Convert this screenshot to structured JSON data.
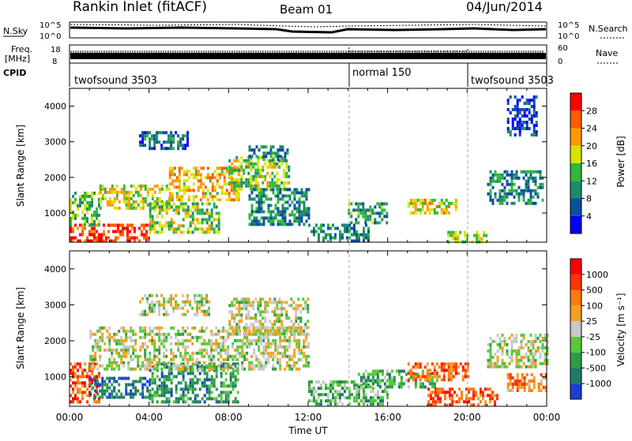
{
  "header": {
    "title": "Rankin Inlet (fitACF)",
    "beam": "Beam 01",
    "date": "04/Jun/2014"
  },
  "noise_panel": {
    "left_label": "N.Sky",
    "right_label": "N.Search",
    "left_ticks": [
      "10^5",
      "10^0"
    ],
    "right_ticks": [
      "10^5",
      "10^0"
    ]
  },
  "freq_panel": {
    "left_label_1": "Freq.",
    "left_label_2": "[MHz]",
    "right_label": "Nave",
    "left_ticks": [
      "18",
      "8"
    ],
    "right_ticks": [
      "60",
      "0"
    ]
  },
  "cpid_panel": {
    "label": "CPID",
    "segments": [
      {
        "label": "twofsound 3503",
        "start_h": 0,
        "end_h": 14
      },
      {
        "label": "normal 150",
        "start_h": 14,
        "end_h": 20
      },
      {
        "label": "twofsound 3503",
        "start_h": 20,
        "end_h": 24
      }
    ]
  },
  "chart_data": [
    {
      "type": "heatmap",
      "name": "power",
      "ylabel": "Slant Range [km]",
      "xlabel": "",
      "xlim": [
        0,
        24
      ],
      "ylim": [
        180,
        4500
      ],
      "y_ticks": [
        "1000",
        "2000",
        "3000",
        "4000"
      ],
      "colorbar": {
        "label": "Power [dB]",
        "ticks": [
          "4",
          "8",
          "12",
          "16",
          "20",
          "24",
          "28"
        ],
        "colors": [
          "#0000ff",
          "#0a4fa0",
          "#1f8a6b",
          "#2fb83a",
          "#d8e400",
          "#ff9a00",
          "#ff5a00",
          "#ff0000"
        ]
      },
      "regions": [
        {
          "t": [
            0.0,
            4.0
          ],
          "r": [
            180,
            700
          ],
          "level": 0.85
        },
        {
          "t": [
            0.0,
            1.5
          ],
          "r": [
            700,
            1600
          ],
          "level": 0.45
        },
        {
          "t": [
            1.5,
            5.0
          ],
          "r": [
            1100,
            1800
          ],
          "level": 0.55
        },
        {
          "t": [
            4.0,
            7.5
          ],
          "r": [
            500,
            1300
          ],
          "level": 0.5
        },
        {
          "t": [
            5.0,
            8.5
          ],
          "r": [
            1400,
            2300
          ],
          "level": 0.65
        },
        {
          "t": [
            8.0,
            11.0
          ],
          "r": [
            1700,
            2600
          ],
          "level": 0.5
        },
        {
          "t": [
            9.0,
            12.0
          ],
          "r": [
            700,
            1700
          ],
          "level": 0.3
        },
        {
          "t": [
            3.5,
            6.0
          ],
          "r": [
            2800,
            3300
          ],
          "level": 0.25
        },
        {
          "t": [
            9.0,
            11.0
          ],
          "r": [
            2500,
            2900
          ],
          "level": 0.3
        },
        {
          "t": [
            12.0,
            15.0
          ],
          "r": [
            200,
            700
          ],
          "level": 0.3
        },
        {
          "t": [
            14.0,
            16.0
          ],
          "r": [
            700,
            1300
          ],
          "level": 0.35
        },
        {
          "t": [
            17.0,
            19.5
          ],
          "r": [
            1000,
            1400
          ],
          "level": 0.6
        },
        {
          "t": [
            19.0,
            21.0
          ],
          "r": [
            200,
            500
          ],
          "level": 0.55
        },
        {
          "t": [
            21.0,
            23.8
          ],
          "r": [
            1300,
            2200
          ],
          "level": 0.3
        },
        {
          "t": [
            22.0,
            23.5
          ],
          "r": [
            3200,
            4300
          ],
          "level": 0.15
        }
      ]
    },
    {
      "type": "heatmap",
      "name": "velocity",
      "ylabel": "Slant Range [km]",
      "xlabel": "Time UT",
      "xlim": [
        0,
        24
      ],
      "ylim": [
        180,
        4500
      ],
      "x_ticks": [
        "00:00",
        "04:00",
        "08:00",
        "12:00",
        "16:00",
        "20:00",
        "00:00"
      ],
      "y_ticks": [
        "1000",
        "2000",
        "3000",
        "4000"
      ],
      "colorbar": {
        "label": "Velocity [m s⁻¹]",
        "ticks": [
          "1000",
          "500",
          "100",
          "25",
          "-25",
          "-100",
          "-500",
          "-1000"
        ],
        "colors": [
          "#1a3fd0",
          "#1d7a66",
          "#2f9c46",
          "#58c83a",
          "#c8c8c8",
          "#f2a020",
          "#ff7a10",
          "#ff3300",
          "#ff0000"
        ]
      },
      "regions": [
        {
          "t": [
            0.0,
            1.5
          ],
          "r": [
            300,
            1400
          ],
          "level": 0.8
        },
        {
          "t": [
            1.0,
            4.0
          ],
          "r": [
            400,
            1000
          ],
          "level": 0.15
        },
        {
          "t": [
            4.0,
            8.5
          ],
          "r": [
            300,
            1400
          ],
          "level": 0.25
        },
        {
          "t": [
            1.0,
            12.0
          ],
          "r": [
            1200,
            2400
          ],
          "level": 0.48
        },
        {
          "t": [
            8.0,
            12.0
          ],
          "r": [
            2200,
            3200
          ],
          "level": 0.48
        },
        {
          "t": [
            3.5,
            7.0
          ],
          "r": [
            2700,
            3300
          ],
          "level": 0.48
        },
        {
          "t": [
            12.0,
            16.0
          ],
          "r": [
            200,
            900
          ],
          "level": 0.35
        },
        {
          "t": [
            14.5,
            18.5
          ],
          "r": [
            700,
            1200
          ],
          "level": 0.3
        },
        {
          "t": [
            17.0,
            20.0
          ],
          "r": [
            900,
            1400
          ],
          "level": 0.78
        },
        {
          "t": [
            18.0,
            21.5
          ],
          "r": [
            200,
            700
          ],
          "level": 0.8
        },
        {
          "t": [
            21.0,
            24.0
          ],
          "r": [
            1300,
            2200
          ],
          "level": 0.48
        },
        {
          "t": [
            22.0,
            24.0
          ],
          "r": [
            600,
            1100
          ],
          "level": 0.7
        }
      ]
    }
  ]
}
